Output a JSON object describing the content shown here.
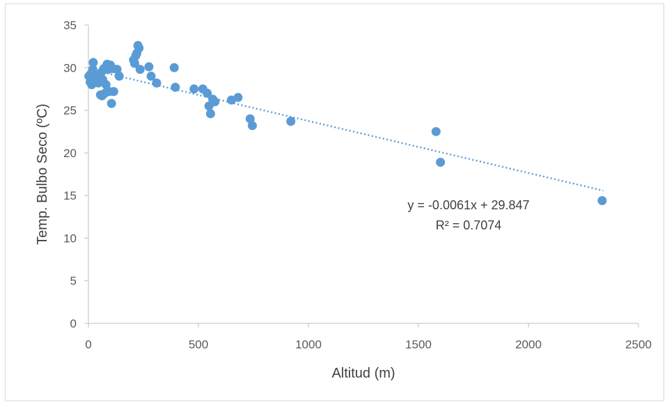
{
  "chart_data": {
    "type": "scatter",
    "title": "",
    "xlabel": "Altitud (m)",
    "ylabel": "Temp. Bulbo Seco (ºC)",
    "xlim": [
      0,
      2500
    ],
    "ylim": [
      0,
      35
    ],
    "x_ticks": [
      "0",
      "500",
      "1000",
      "1500",
      "2000",
      "2500"
    ],
    "y_ticks": [
      "0",
      "5",
      "10",
      "15",
      "20",
      "25",
      "30",
      "35"
    ],
    "grid": false,
    "legend": "none",
    "marker_color": "#5b9bd5",
    "trendline_color": "#5b9bd5",
    "trendline": {
      "type": "linear",
      "slope": -0.0061,
      "intercept": 29.847,
      "x_range": [
        0,
        2340
      ],
      "equation": "y = -0.0061x + 29.847",
      "r_squared": "R² = 0.7074"
    },
    "series": [
      {
        "points": [
          [
            2,
            29.0
          ],
          [
            8,
            28.3
          ],
          [
            12,
            29.3
          ],
          [
            15,
            28.0
          ],
          [
            20,
            29.8
          ],
          [
            22,
            30.6
          ],
          [
            30,
            28.9
          ],
          [
            40,
            28.8
          ],
          [
            45,
            28.2
          ],
          [
            50,
            29.2
          ],
          [
            55,
            26.8
          ],
          [
            60,
            29.5
          ],
          [
            62,
            26.7
          ],
          [
            65,
            28.6
          ],
          [
            70,
            29.9
          ],
          [
            75,
            27.0
          ],
          [
            80,
            28.0
          ],
          [
            85,
            30.4
          ],
          [
            90,
            29.8
          ],
          [
            95,
            27.2
          ],
          [
            100,
            30.3
          ],
          [
            105,
            25.8
          ],
          [
            110,
            29.9
          ],
          [
            115,
            27.2
          ],
          [
            130,
            29.8
          ],
          [
            140,
            29.0
          ],
          [
            205,
            30.9
          ],
          [
            210,
            30.5
          ],
          [
            215,
            31.4
          ],
          [
            220,
            31.7
          ],
          [
            225,
            32.6
          ],
          [
            230,
            32.3
          ],
          [
            235,
            29.8
          ],
          [
            275,
            30.1
          ],
          [
            285,
            29.0
          ],
          [
            310,
            28.2
          ],
          [
            390,
            30.0
          ],
          [
            395,
            27.7
          ],
          [
            480,
            27.5
          ],
          [
            520,
            27.5
          ],
          [
            540,
            27.0
          ],
          [
            548,
            25.5
          ],
          [
            555,
            24.6
          ],
          [
            565,
            26.3
          ],
          [
            575,
            26.0
          ],
          [
            650,
            26.2
          ],
          [
            680,
            26.5
          ],
          [
            735,
            24.0
          ],
          [
            745,
            23.2
          ],
          [
            920,
            23.7
          ],
          [
            1580,
            22.5
          ],
          [
            1600,
            18.9
          ],
          [
            2335,
            14.4
          ]
        ]
      }
    ]
  }
}
